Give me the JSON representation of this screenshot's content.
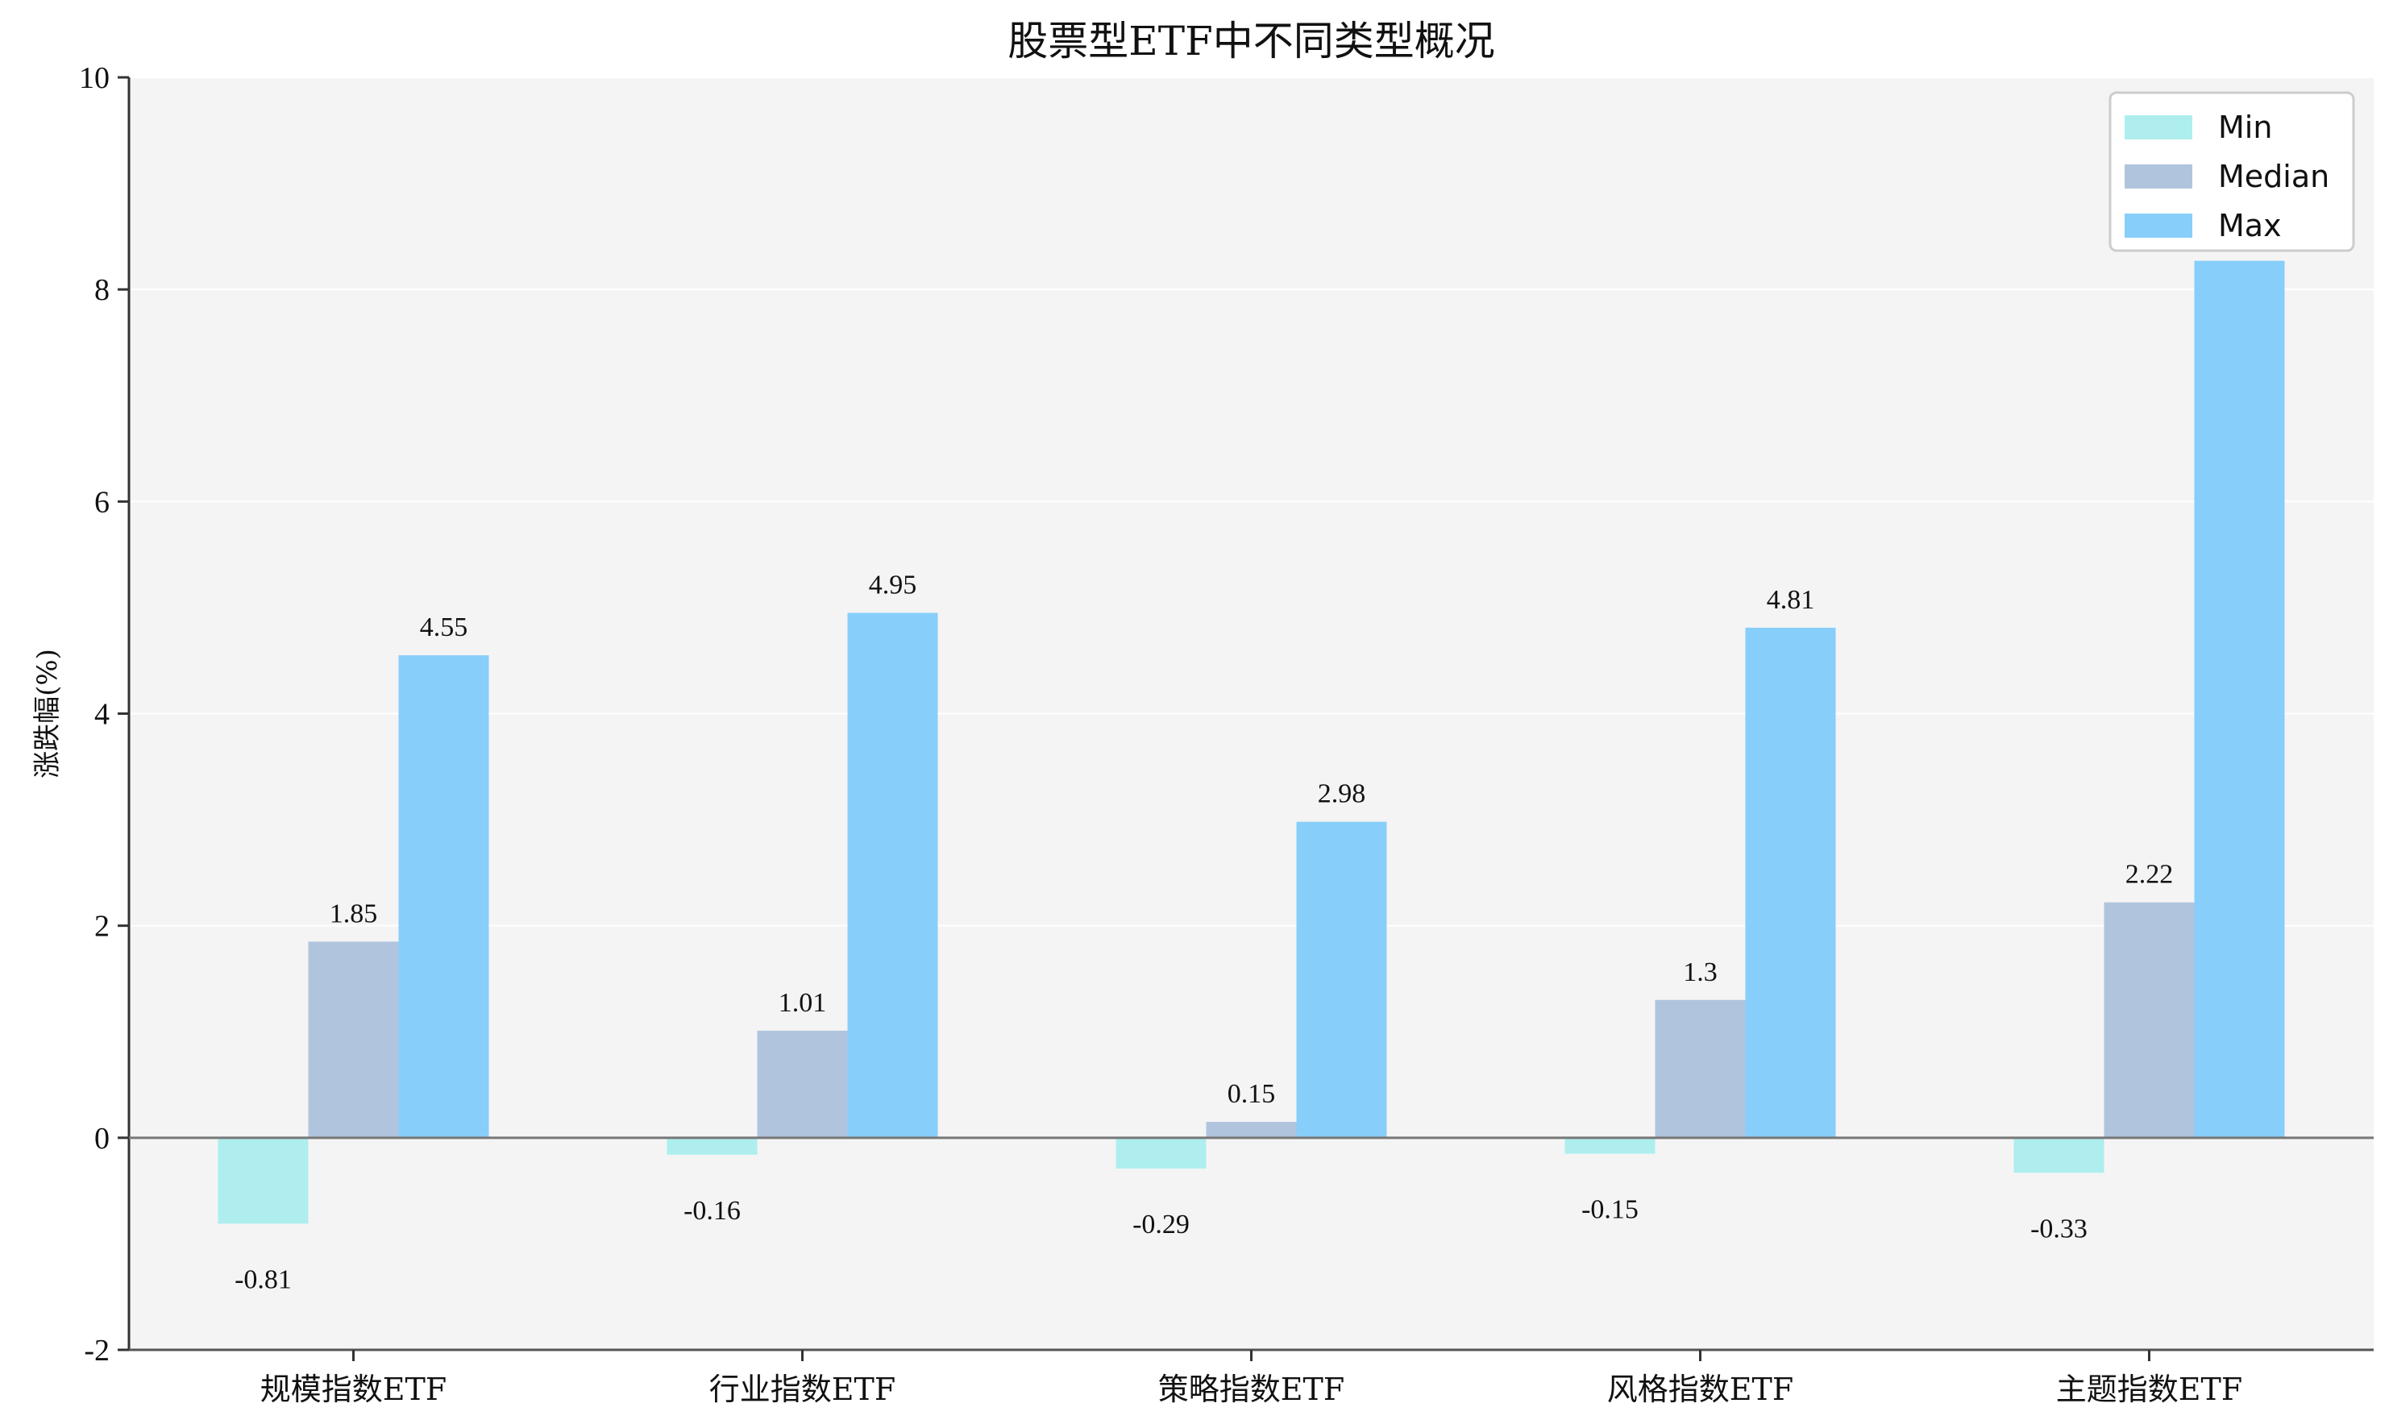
{
  "chart_data": {
    "type": "bar",
    "title": "股票型ETF中不同类型概况",
    "xlabel": "",
    "ylabel": "涨跌幅(%)",
    "ylim": [
      -2,
      10
    ],
    "yticks": [
      -2,
      0,
      2,
      4,
      6,
      8,
      10
    ],
    "grid": "horizontal",
    "legend_position": "top-right",
    "categories": [
      "规模指数ETF",
      "行业指数ETF",
      "策略指数ETF",
      "风格指数ETF",
      "主题指数ETF"
    ],
    "series": [
      {
        "name": "Min",
        "color": "#aeeeee",
        "values": [
          -0.81,
          -0.16,
          -0.29,
          -0.15,
          -0.33
        ]
      },
      {
        "name": "Median",
        "color": "#b0c4de",
        "values": [
          1.85,
          1.01,
          0.15,
          1.3,
          2.22
        ]
      },
      {
        "name": "Max",
        "color": "#87cefa",
        "values": [
          4.55,
          4.95,
          2.98,
          4.81,
          8.27
        ]
      }
    ],
    "data_labels": [
      [
        "-0.81",
        "-0.16",
        "-0.29",
        "-0.15",
        "-0.33"
      ],
      [
        "1.85",
        "1.01",
        "0.15",
        "1.3",
        "2.22"
      ],
      [
        "4.55",
        "4.95",
        "2.98",
        "4.81",
        "8.27"
      ]
    ],
    "plot_background": "#f4f4f4"
  }
}
